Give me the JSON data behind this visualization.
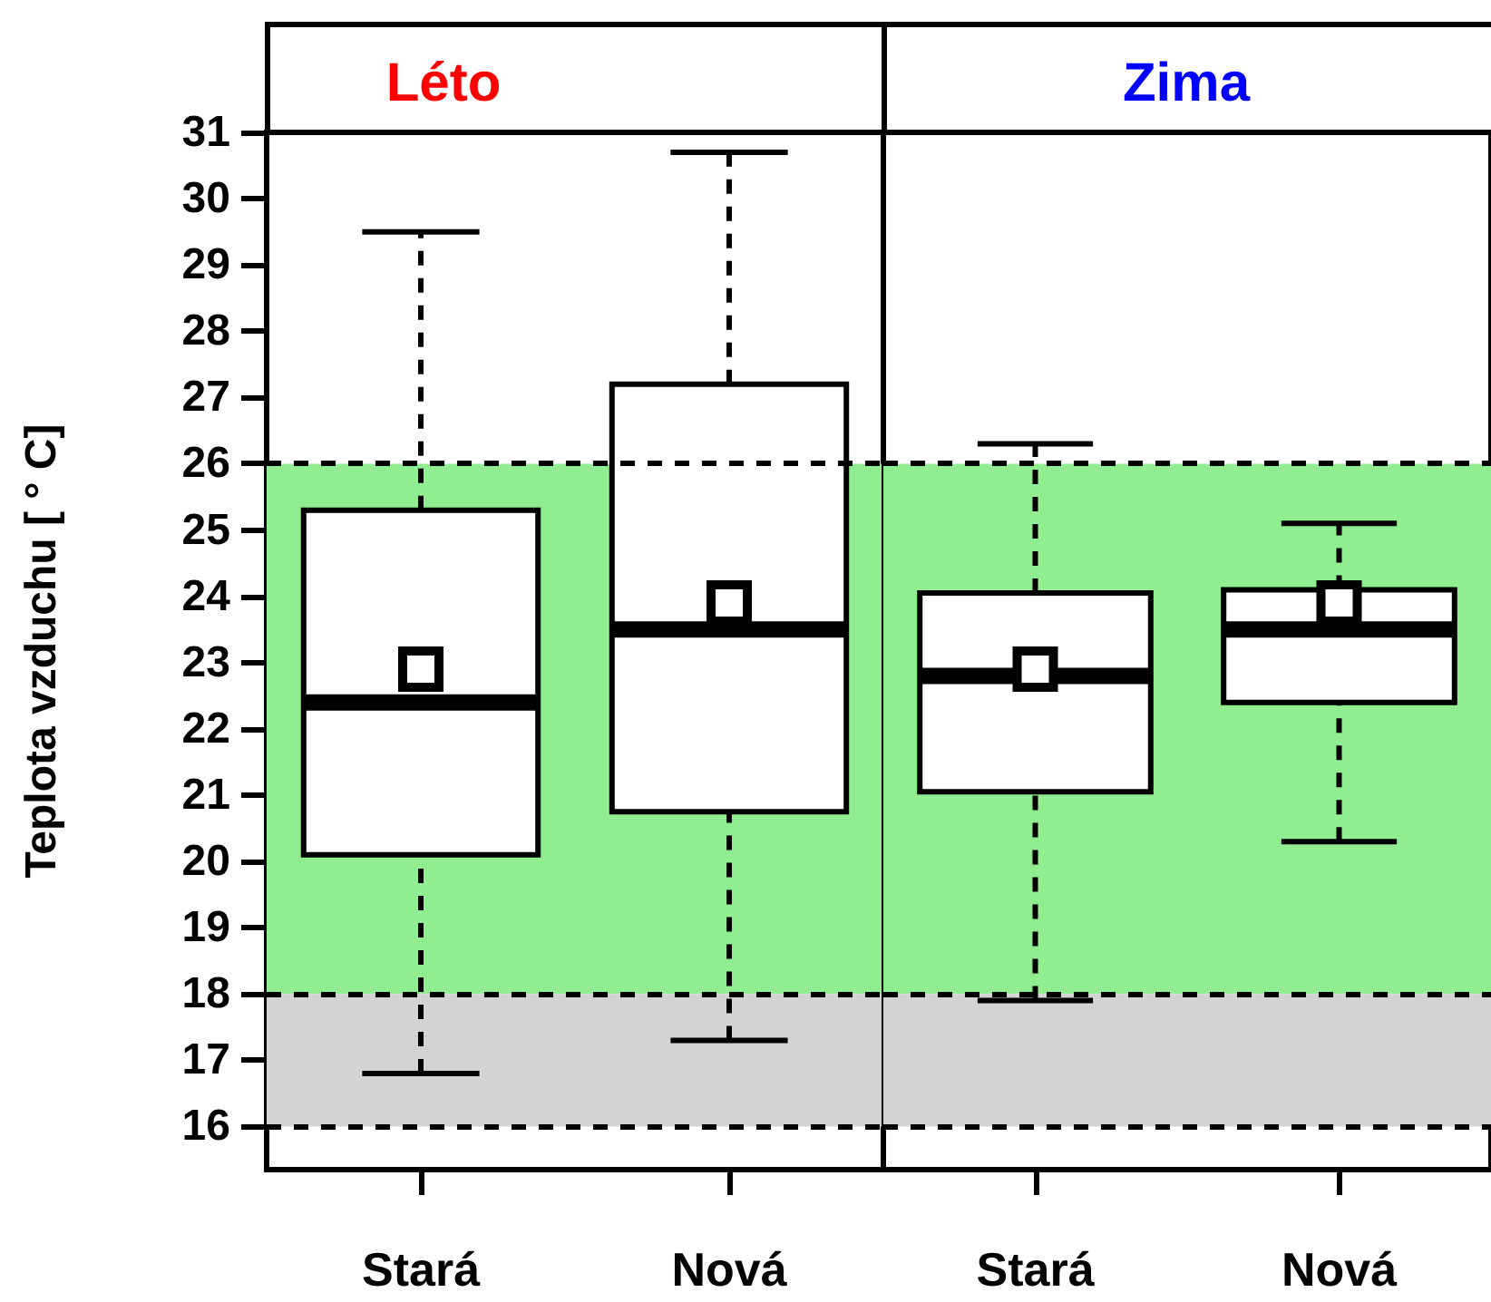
{
  "chart_data": [
    {
      "type": "box",
      "title": "Léto",
      "ylabel": "Teplota vzduchu [ ° C]",
      "categories": [
        "Stará",
        "Nová"
      ],
      "boxes": [
        {
          "low": 16.8,
          "q1": 20.1,
          "median": 22.4,
          "q3": 25.3,
          "high": 29.5,
          "mean": 22.9
        },
        {
          "low": 17.3,
          "q1": 20.75,
          "median": 23.5,
          "q3": 27.2,
          "high": 30.7,
          "mean": 23.9
        }
      ],
      "ylim": [
        15.35,
        31
      ],
      "yticks": [
        16,
        17,
        18,
        19,
        20,
        21,
        22,
        23,
        24,
        25,
        26,
        27,
        28,
        29,
        30,
        31
      ],
      "bands": [
        {
          "axis": "y",
          "from": 18,
          "to": 26,
          "color": "#90ee90"
        },
        {
          "axis": "y",
          "from": 16,
          "to": 18,
          "color": "#d3d3d3"
        }
      ],
      "ref_lines": [
        {
          "axis": "y",
          "value": 16,
          "line_style": "dashed"
        },
        {
          "axis": "y",
          "value": 18,
          "line_style": "dashed"
        },
        {
          "axis": "y",
          "value": 26,
          "line_style": "dashed"
        }
      ],
      "marker": "square",
      "line_style": "dashed"
    },
    {
      "type": "box",
      "title": "Zima",
      "categories": [
        "Stará",
        "Nová"
      ],
      "boxes": [
        {
          "low": 17.9,
          "q1": 21.05,
          "median": 22.8,
          "q3": 24.05,
          "high": 26.3,
          "mean": 22.9
        },
        {
          "low": 20.3,
          "q1": 22.4,
          "median": 23.5,
          "q3": 24.1,
          "high": 25.1,
          "mean": 23.9
        }
      ],
      "ylim": [
        15.35,
        31
      ],
      "yticks": [
        16,
        17,
        18,
        19,
        20,
        21,
        22,
        23,
        24,
        25,
        26,
        27,
        28,
        29,
        30,
        31
      ],
      "bands": [
        {
          "axis": "y",
          "from": 18,
          "to": 26,
          "color": "#90ee90"
        },
        {
          "axis": "y",
          "from": 16,
          "to": 18,
          "color": "#d3d3d3"
        }
      ],
      "ref_lines": [
        {
          "axis": "y",
          "value": 16,
          "line_style": "dashed"
        },
        {
          "axis": "y",
          "value": 18,
          "line_style": "dashed"
        },
        {
          "axis": "y",
          "value": 26,
          "line_style": "dashed"
        }
      ],
      "marker": "square",
      "line_style": "dashed",
      "tick_labels": "x"
    }
  ]
}
